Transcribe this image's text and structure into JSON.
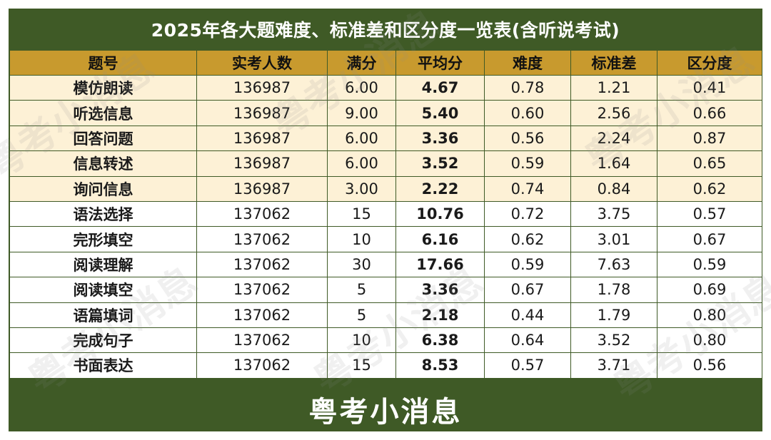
{
  "title": "2025年各大题难度、标准差和区分度一览表(含听说考试)",
  "headers": [
    "题号",
    "实考人数",
    "满分",
    "平均分",
    "难度",
    "标准差",
    "区分度"
  ],
  "rows": [
    {
      "item": "模仿朗读",
      "count": "136987",
      "full": "6.00",
      "avg": "4.67",
      "difficulty": "0.78",
      "std": "1.21",
      "disc": "0.41"
    },
    {
      "item": "听选信息",
      "count": "136987",
      "full": "9.00",
      "avg": "5.40",
      "difficulty": "0.60",
      "std": "2.56",
      "disc": "0.66"
    },
    {
      "item": "回答问题",
      "count": "136987",
      "full": "6.00",
      "avg": "3.36",
      "difficulty": "0.56",
      "std": "2.24",
      "disc": "0.87"
    },
    {
      "item": "信息转述",
      "count": "136987",
      "full": "6.00",
      "avg": "3.52",
      "difficulty": "0.59",
      "std": "1.64",
      "disc": "0.65"
    },
    {
      "item": "询问信息",
      "count": "136987",
      "full": "3.00",
      "avg": "2.22",
      "difficulty": "0.74",
      "std": "0.84",
      "disc": "0.62"
    },
    {
      "item": "语法选择",
      "count": "137062",
      "full": "15",
      "avg": "10.76",
      "difficulty": "0.72",
      "std": "3.75",
      "disc": "0.57"
    },
    {
      "item": "完形填空",
      "count": "137062",
      "full": "10",
      "avg": "6.16",
      "difficulty": "0.62",
      "std": "3.01",
      "disc": "0.67"
    },
    {
      "item": "阅读理解",
      "count": "137062",
      "full": "30",
      "avg": "17.66",
      "difficulty": "0.59",
      "std": "7.63",
      "disc": "0.59"
    },
    {
      "item": "阅读填空",
      "count": "137062",
      "full": "5",
      "avg": "3.36",
      "difficulty": "0.67",
      "std": "1.78",
      "disc": "0.69"
    },
    {
      "item": "语篇填词",
      "count": "137062",
      "full": "5",
      "avg": "2.18",
      "difficulty": "0.44",
      "std": "1.79",
      "disc": "0.80"
    },
    {
      "item": "完成句子",
      "count": "137062",
      "full": "10",
      "avg": "6.38",
      "difficulty": "0.64",
      "std": "3.52",
      "disc": "0.80"
    },
    {
      "item": "书面表达",
      "count": "137062",
      "full": "15",
      "avg": "8.53",
      "difficulty": "0.57",
      "std": "3.71",
      "disc": "0.56"
    }
  ],
  "footer": "粤考小消息",
  "watermark": "粤考小消息",
  "colors": {
    "frame": "#3f5a26",
    "header": "#c89a2e",
    "listening_rows": "#fdf1d6",
    "written_rows": "#ffffff"
  }
}
